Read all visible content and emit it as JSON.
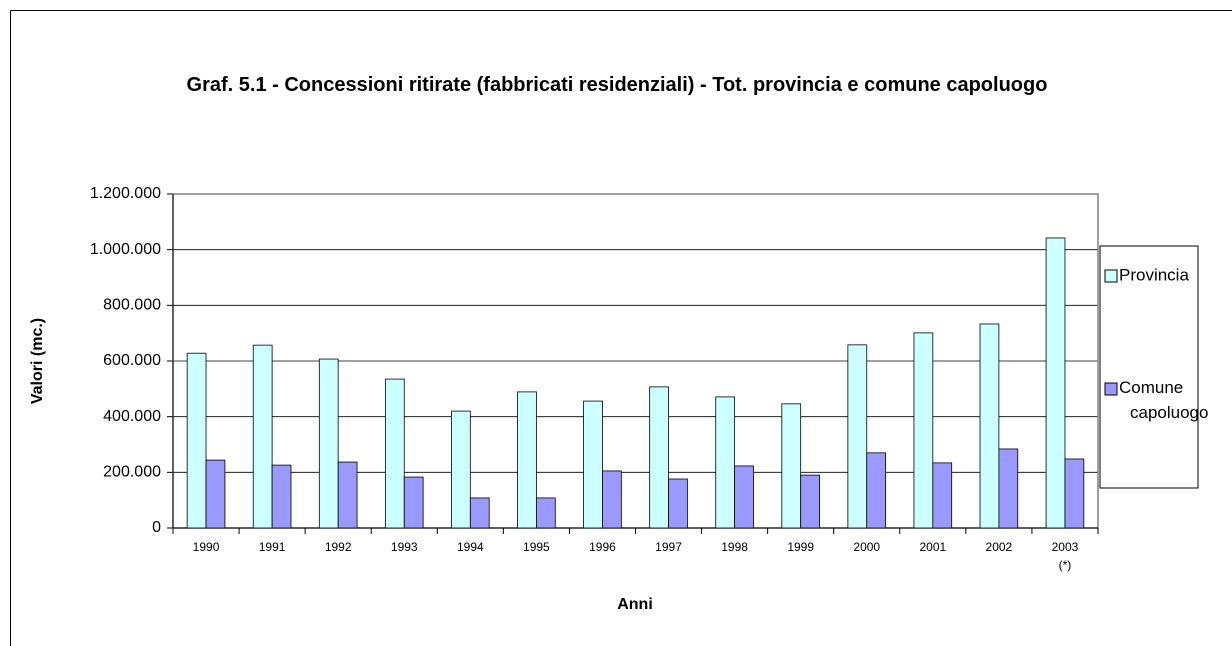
{
  "chart_data": {
    "type": "bar",
    "title": "Graf. 5.1 - Concessioni ritirate (fabbricati residenziali) - Tot. provincia e comune capoluogo",
    "x_label": "Anni",
    "y_label": "Valori (mc.)",
    "categories": [
      "1990",
      "1991",
      "1992",
      "1993",
      "1994",
      "1995",
      "1996",
      "1997",
      "1998",
      "1999",
      "2000",
      "2001",
      "2002",
      "2003 (*)"
    ],
    "series": [
      {
        "name": "Provincia",
        "color": "#ccffff",
        "values": [
          628000,
          657000,
          607000,
          535000,
          420000,
          489000,
          456000,
          507000,
          471000,
          446000,
          658000,
          701000,
          733000,
          1042000
        ]
      },
      {
        "name": "Comune capoluogo",
        "color": "#9999ff",
        "values": [
          244000,
          226000,
          237000,
          183000,
          108000,
          108000,
          205000,
          176000,
          223000,
          190000,
          270000,
          234000,
          284000,
          248000
        ]
      }
    ],
    "ylim": [
      0,
      1200000
    ],
    "yticks": [
      0,
      {
        "value": 200000,
        "label": "200.000"
      },
      {
        "value": 400000,
        "label": "400.000"
      },
      {
        "value": 600000,
        "label": "600.000"
      },
      {
        "value": 800000,
        "label": "800.000"
      },
      {
        "value": 1000000,
        "label": "1.000.000"
      },
      {
        "value": 1200000,
        "label": "1.200.000"
      }
    ],
    "grid": true,
    "legend": "right"
  }
}
